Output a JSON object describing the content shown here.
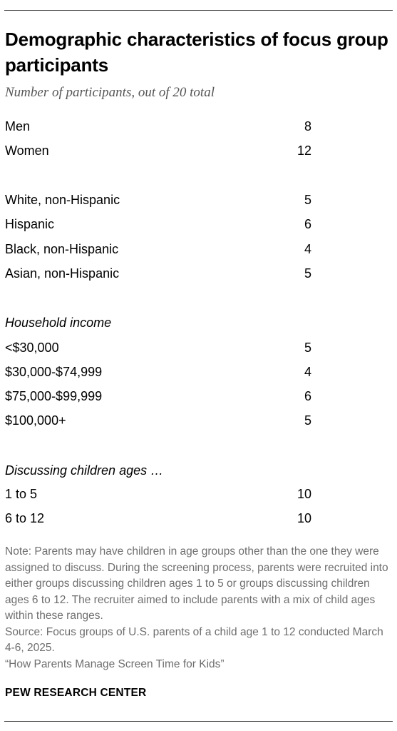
{
  "title": "Demographic characteristics of focus group participants",
  "subtitle": "Number of participants, out of 20 total",
  "gender": [
    {
      "label": "Men",
      "value": "8"
    },
    {
      "label": "Women",
      "value": "12"
    }
  ],
  "race": [
    {
      "label": "White, non-Hispanic",
      "value": "5"
    },
    {
      "label": "Hispanic",
      "value": "6"
    },
    {
      "label": "Black, non-Hispanic",
      "value": "4"
    },
    {
      "label": "Asian, non-Hispanic",
      "value": "5"
    }
  ],
  "income": {
    "heading": "Household income",
    "rows": [
      {
        "label": "<$30,000",
        "value": "5"
      },
      {
        "label": "$30,000-$74,999",
        "value": "4"
      },
      {
        "label": "$75,000-$99,999",
        "value": "6"
      },
      {
        "label": "$100,000+",
        "value": "5"
      }
    ]
  },
  "ages": {
    "heading": "Discussing children ages …",
    "rows": [
      {
        "label": "1 to 5",
        "value": "10"
      },
      {
        "label": "6 to 12",
        "value": "10"
      }
    ]
  },
  "note": "Note: Parents may have children in age groups other than the one they were assigned to discuss. During the screening process, parents were recruited into either groups discussing children ages 1 to 5 or groups discussing children ages 6 to 12. The recruiter aimed to include parents with a mix of child ages within these ranges.",
  "source": "Source: Focus groups of U.S. parents of a child age 1 to 12 conducted March 4-6, 2025.",
  "report": "“How Parents Manage Screen Time for Kids”",
  "org": "PEW RESEARCH CENTER"
}
